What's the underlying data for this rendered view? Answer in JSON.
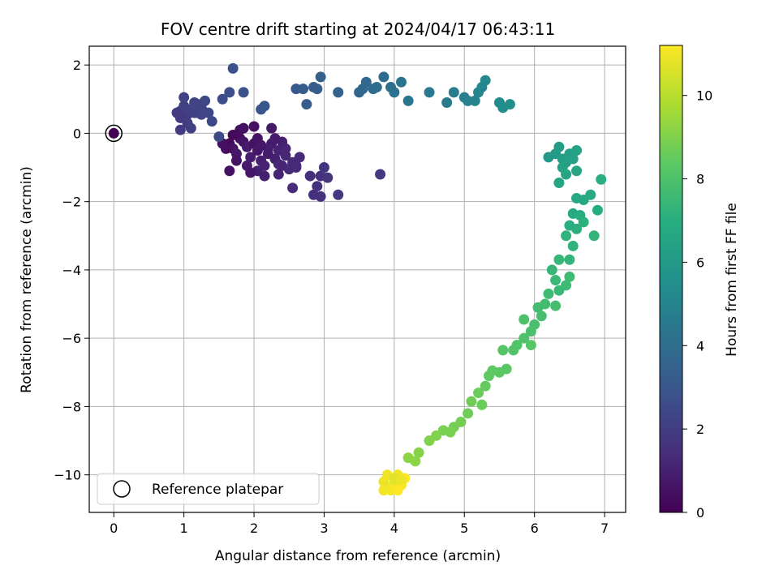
{
  "chart_data": {
    "type": "scatter",
    "title": "FOV centre drift starting at 2024/04/17 06:43:11",
    "xlabel": "Angular distance from reference (arcmin)",
    "ylabel": "Rotation from reference (arcmin)",
    "xlim": [
      -0.35,
      7.3
    ],
    "ylim": [
      -11.1,
      2.55
    ],
    "xticks": [
      0,
      1,
      2,
      3,
      4,
      5,
      6,
      7
    ],
    "yticks": [
      -10,
      -8,
      -6,
      -4,
      -2,
      0,
      2
    ],
    "grid": true,
    "legend": {
      "placement": "lower-left",
      "entries": [
        "Reference platepar"
      ]
    },
    "reference_point": {
      "x": 0,
      "y": 0
    },
    "colorbar": {
      "label": "Hours from first FF file",
      "range": [
        0,
        11.2
      ],
      "ticks": [
        0,
        2,
        4,
        6,
        8,
        10
      ],
      "colormap": "viridis"
    },
    "series": [
      {
        "columns": [
          "x",
          "y",
          "hours"
        ],
        "points": [
          [
            1.65,
            -0.3,
            0.3
          ],
          [
            1.7,
            -0.45,
            0.5
          ],
          [
            1.75,
            -0.6,
            0.7
          ],
          [
            1.8,
            -0.15,
            0.4
          ],
          [
            1.85,
            -0.25,
            0.6
          ],
          [
            1.9,
            -0.4,
            0.8
          ],
          [
            1.95,
            -0.7,
            0.9
          ],
          [
            2.0,
            -0.3,
            0.5
          ],
          [
            2.05,
            -0.5,
            0.7
          ],
          [
            2.1,
            -0.8,
            1.0
          ],
          [
            2.15,
            -0.95,
            1.1
          ],
          [
            2.2,
            -0.6,
            0.9
          ],
          [
            2.25,
            -0.3,
            0.8
          ],
          [
            2.3,
            -0.75,
            1.0
          ],
          [
            2.35,
            -0.5,
            1.1
          ],
          [
            2.4,
            -0.95,
            1.2
          ],
          [
            2.45,
            -0.65,
            1.2
          ],
          [
            2.55,
            -0.85,
            1.3
          ],
          [
            2.6,
            -1.0,
            1.4
          ],
          [
            2.65,
            -0.7,
            1.3
          ],
          [
            1.8,
            0.1,
            0.4
          ],
          [
            2.0,
            0.2,
            0.5
          ],
          [
            2.25,
            0.15,
            0.8
          ],
          [
            1.7,
            -0.05,
            0.3
          ],
          [
            1.6,
            -0.45,
            0.4
          ],
          [
            1.75,
            -0.8,
            0.6
          ],
          [
            1.9,
            -0.95,
            0.8
          ],
          [
            2.05,
            -1.1,
            1.0
          ],
          [
            2.15,
            -1.25,
            1.0
          ],
          [
            2.35,
            -1.2,
            1.1
          ],
          [
            2.5,
            -1.05,
            1.3
          ],
          [
            1.65,
            -1.1,
            0.5
          ],
          [
            1.95,
            -1.15,
            0.7
          ],
          [
            2.2,
            -0.45,
            0.9
          ],
          [
            2.4,
            -0.25,
            1.0
          ],
          [
            2.05,
            -0.15,
            0.6
          ],
          [
            1.85,
            0.15,
            0.5
          ],
          [
            2.3,
            -0.15,
            0.9
          ],
          [
            2.1,
            -0.35,
            0.7
          ],
          [
            1.55,
            -0.3,
            0.4
          ],
          [
            2.55,
            -1.6,
            1.4
          ],
          [
            2.8,
            -1.25,
            1.5
          ],
          [
            2.85,
            -1.8,
            1.5
          ],
          [
            2.9,
            -1.55,
            1.6
          ],
          [
            2.95,
            -1.25,
            1.6
          ],
          [
            3.0,
            -1.0,
            1.7
          ],
          [
            3.05,
            -1.3,
            1.7
          ],
          [
            2.95,
            -1.85,
            1.6
          ],
          [
            3.2,
            -1.8,
            1.8
          ],
          [
            3.8,
            -1.2,
            1.9
          ],
          [
            2.45,
            -0.45,
            1.2
          ],
          [
            2.35,
            -0.9,
            1.2
          ],
          [
            2.6,
            -0.95,
            1.3
          ],
          [
            0.95,
            0.65,
            2.0
          ],
          [
            1.0,
            0.8,
            2.1
          ],
          [
            1.05,
            0.55,
            2.0
          ],
          [
            1.1,
            0.7,
            2.2
          ],
          [
            1.15,
            0.9,
            2.2
          ],
          [
            1.2,
            0.6,
            2.3
          ],
          [
            1.25,
            0.75,
            2.3
          ],
          [
            1.3,
            0.95,
            2.4
          ],
          [
            0.95,
            0.45,
            1.9
          ],
          [
            1.0,
            1.05,
            2.2
          ],
          [
            1.05,
            0.3,
            2.0
          ],
          [
            1.1,
            0.15,
            2.1
          ],
          [
            0.95,
            0.1,
            1.9
          ],
          [
            1.2,
            0.85,
            2.3
          ],
          [
            1.35,
            0.6,
            2.4
          ],
          [
            1.4,
            0.35,
            2.4
          ],
          [
            1.5,
            -0.1,
            2.5
          ],
          [
            0.9,
            0.6,
            1.9
          ],
          [
            1.15,
            0.6,
            2.2
          ],
          [
            1.25,
            0.55,
            2.3
          ],
          [
            1.55,
            1.0,
            2.6
          ],
          [
            1.65,
            1.2,
            2.7
          ],
          [
            1.85,
            1.2,
            2.8
          ],
          [
            1.7,
            1.9,
            2.8
          ],
          [
            2.1,
            0.7,
            2.9
          ],
          [
            2.15,
            0.8,
            3.0
          ],
          [
            2.6,
            1.3,
            3.1
          ],
          [
            2.7,
            1.3,
            3.2
          ],
          [
            2.75,
            0.85,
            3.2
          ],
          [
            2.85,
            1.35,
            3.3
          ],
          [
            2.9,
            1.3,
            3.3
          ],
          [
            2.95,
            1.65,
            3.4
          ],
          [
            3.2,
            1.2,
            3.5
          ],
          [
            3.5,
            1.2,
            3.7
          ],
          [
            3.55,
            1.3,
            3.8
          ],
          [
            3.6,
            1.5,
            3.8
          ],
          [
            3.7,
            1.3,
            3.9
          ],
          [
            3.75,
            1.35,
            4.0
          ],
          [
            3.85,
            1.65,
            4.0
          ],
          [
            3.95,
            1.35,
            4.1
          ],
          [
            4.0,
            1.2,
            4.2
          ],
          [
            4.1,
            1.5,
            4.3
          ],
          [
            4.2,
            0.95,
            4.4
          ],
          [
            4.5,
            1.2,
            4.5
          ],
          [
            4.75,
            0.9,
            4.6
          ],
          [
            4.85,
            1.2,
            4.7
          ],
          [
            5.0,
            1.05,
            4.8
          ],
          [
            5.05,
            0.95,
            4.9
          ],
          [
            5.15,
            0.95,
            5.0
          ],
          [
            5.2,
            1.2,
            5.0
          ],
          [
            5.25,
            1.35,
            5.1
          ],
          [
            5.3,
            1.55,
            5.2
          ],
          [
            5.5,
            0.9,
            5.3
          ],
          [
            5.55,
            0.75,
            5.4
          ],
          [
            5.65,
            0.85,
            5.5
          ],
          [
            6.2,
            -0.7,
            6.0
          ],
          [
            6.3,
            -0.6,
            6.1
          ],
          [
            6.35,
            -0.4,
            6.2
          ],
          [
            6.4,
            -0.75,
            6.2
          ],
          [
            6.45,
            -0.85,
            6.3
          ],
          [
            6.5,
            -0.6,
            6.3
          ],
          [
            6.55,
            -0.75,
            6.4
          ],
          [
            6.6,
            -0.5,
            6.4
          ],
          [
            6.4,
            -1.0,
            6.4
          ],
          [
            6.45,
            -1.2,
            6.5
          ],
          [
            6.6,
            -1.1,
            6.5
          ],
          [
            6.35,
            -1.45,
            6.5
          ],
          [
            6.6,
            -1.9,
            6.7
          ],
          [
            6.7,
            -1.95,
            6.7
          ],
          [
            6.8,
            -1.8,
            6.8
          ],
          [
            6.55,
            -2.35,
            6.8
          ],
          [
            6.65,
            -2.4,
            6.9
          ],
          [
            6.9,
            -2.25,
            6.9
          ],
          [
            6.95,
            -1.35,
            7.0
          ],
          [
            6.5,
            -2.7,
            7.0
          ],
          [
            6.6,
            -2.8,
            7.1
          ],
          [
            6.7,
            -2.6,
            7.1
          ],
          [
            6.45,
            -3.0,
            7.2
          ],
          [
            6.55,
            -3.3,
            7.2
          ],
          [
            6.85,
            -3.0,
            7.3
          ],
          [
            6.5,
            -3.7,
            7.3
          ],
          [
            6.35,
            -3.7,
            7.4
          ],
          [
            6.25,
            -4.0,
            7.4
          ],
          [
            6.3,
            -4.3,
            7.5
          ],
          [
            6.35,
            -4.6,
            7.5
          ],
          [
            6.45,
            -4.45,
            7.6
          ],
          [
            6.5,
            -4.2,
            7.6
          ],
          [
            6.2,
            -4.7,
            7.6
          ],
          [
            6.15,
            -5.0,
            7.7
          ],
          [
            6.05,
            -5.1,
            7.7
          ],
          [
            6.3,
            -5.05,
            7.8
          ],
          [
            6.1,
            -5.35,
            7.8
          ],
          [
            6.0,
            -5.6,
            7.9
          ],
          [
            5.95,
            -5.8,
            7.9
          ],
          [
            5.85,
            -5.45,
            8.0
          ],
          [
            5.85,
            -6.0,
            8.0
          ],
          [
            5.75,
            -6.2,
            8.1
          ],
          [
            5.7,
            -6.35,
            8.1
          ],
          [
            5.55,
            -6.35,
            8.2
          ],
          [
            5.95,
            -6.2,
            8.2
          ],
          [
            5.6,
            -6.9,
            8.3
          ],
          [
            5.5,
            -7.0,
            8.3
          ],
          [
            5.35,
            -7.1,
            8.4
          ],
          [
            5.4,
            -6.95,
            8.4
          ],
          [
            5.3,
            -7.4,
            8.5
          ],
          [
            5.2,
            -7.6,
            8.6
          ],
          [
            5.25,
            -7.95,
            8.6
          ],
          [
            5.1,
            -7.85,
            8.7
          ],
          [
            5.05,
            -8.2,
            8.7
          ],
          [
            4.95,
            -8.45,
            8.8
          ],
          [
            4.85,
            -8.6,
            8.8
          ],
          [
            4.8,
            -8.75,
            8.9
          ],
          [
            4.7,
            -8.7,
            8.9
          ],
          [
            4.6,
            -8.85,
            9.0
          ],
          [
            4.5,
            -9.0,
            9.0
          ],
          [
            4.35,
            -9.35,
            9.1
          ],
          [
            4.3,
            -9.6,
            9.2
          ],
          [
            4.2,
            -9.5,
            9.2
          ],
          [
            4.0,
            -10.25,
            10.8
          ],
          [
            3.95,
            -10.4,
            10.9
          ],
          [
            4.05,
            -10.0,
            11.0
          ],
          [
            3.85,
            -10.2,
            10.9
          ],
          [
            4.1,
            -10.3,
            11.1
          ],
          [
            3.9,
            -10.0,
            11.0
          ],
          [
            4.15,
            -10.1,
            11.2
          ],
          [
            3.95,
            -10.45,
            11.1
          ],
          [
            4.05,
            -10.45,
            11.2
          ],
          [
            3.85,
            -10.45,
            11.0
          ],
          [
            4.0,
            -10.1,
            10.7
          ],
          [
            4.1,
            -10.15,
            10.9
          ]
        ]
      }
    ]
  }
}
